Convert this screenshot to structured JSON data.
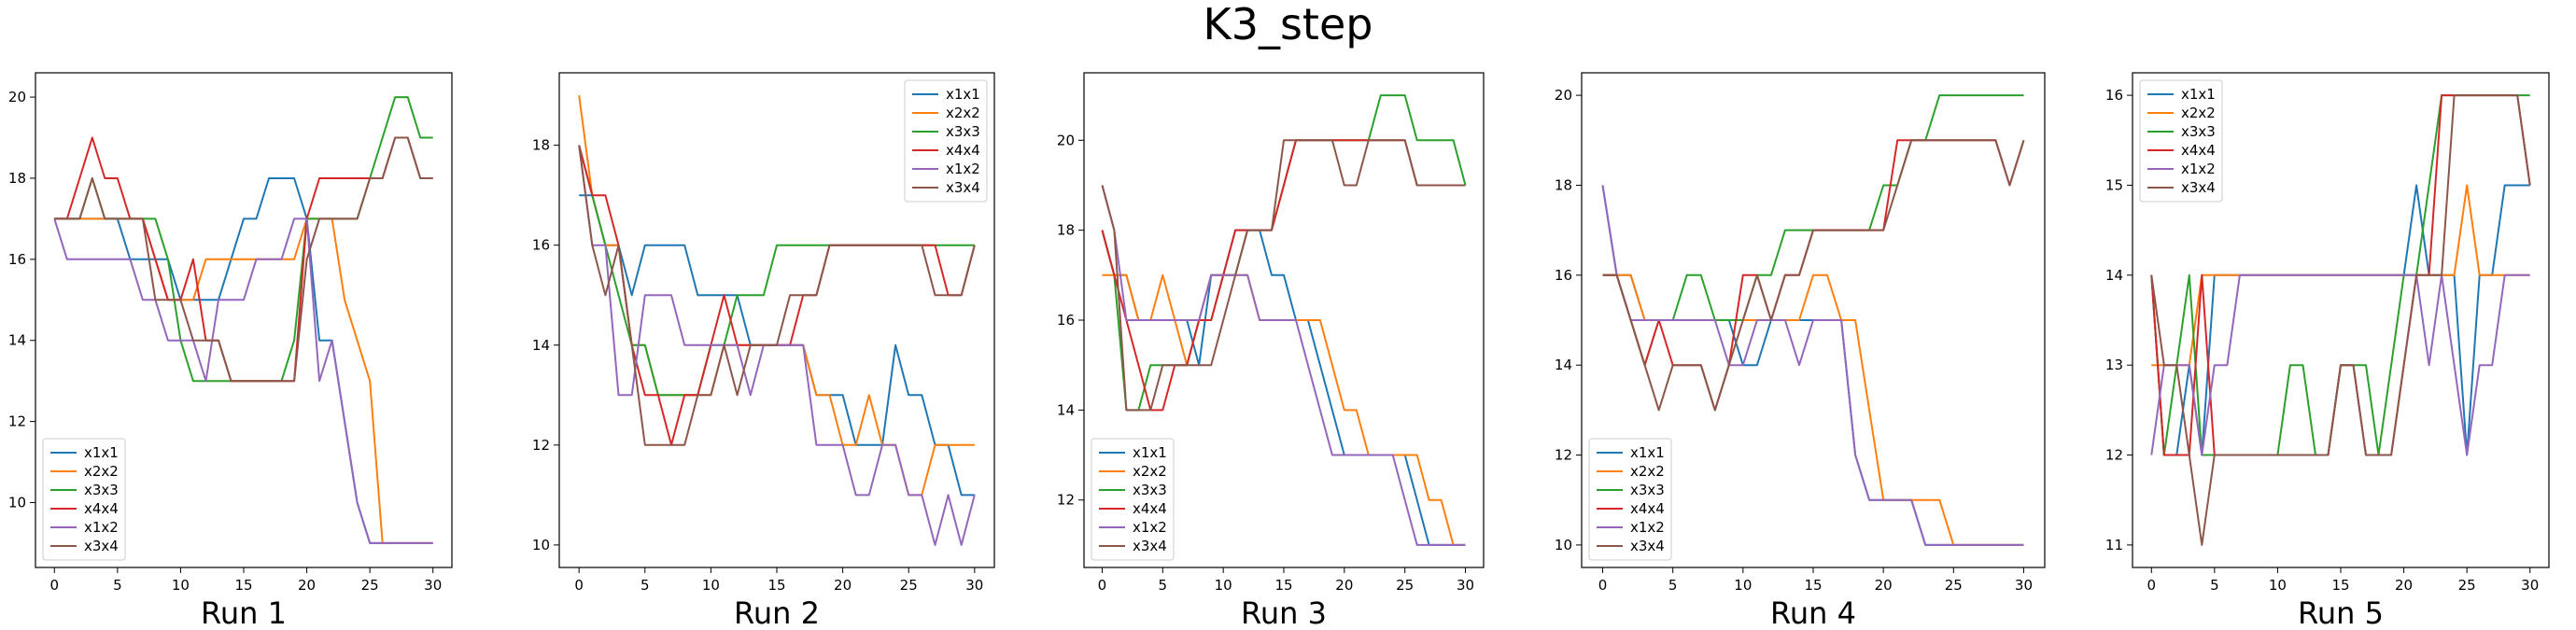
{
  "figure": {
    "title": "K3_step"
  },
  "series_names": [
    "x1x1",
    "x2x2",
    "x3x3",
    "x4x4",
    "x1x2",
    "x3x4"
  ],
  "colors": [
    "#1f77b4",
    "#ff7f0e",
    "#2ca02c",
    "#d62728",
    "#9467bd",
    "#8c564b"
  ],
  "chart_data": [
    {
      "type": "line",
      "title": "Run 1",
      "xlabel": "Run 1",
      "ylabel": "",
      "xlim": [
        -1.5,
        31.5
      ],
      "ylim": [
        8.4,
        20.6
      ],
      "xticks": [
        0,
        5,
        10,
        15,
        20,
        25,
        30
      ],
      "yticks": [
        10,
        12,
        14,
        16,
        18,
        20
      ],
      "legend_position": "lower-left",
      "series": [
        {
          "name": "x1x1",
          "values": [
            17,
            17,
            17,
            17,
            17,
            17,
            16,
            16,
            16,
            16,
            15,
            15,
            15,
            15,
            16,
            17,
            17,
            18,
            18,
            18,
            17,
            14,
            14,
            12,
            10,
            9,
            9,
            9,
            9,
            9,
            9
          ]
        },
        {
          "name": "x2x2",
          "values": [
            17,
            17,
            17,
            17,
            17,
            17,
            17,
            17,
            16,
            15,
            15,
            15,
            16,
            16,
            16,
            16,
            16,
            16,
            16,
            16,
            17,
            17,
            17,
            15,
            14,
            13,
            9,
            9,
            9,
            9,
            9
          ]
        },
        {
          "name": "x3x3",
          "values": [
            17,
            17,
            17,
            18,
            17,
            17,
            17,
            17,
            17,
            16,
            14,
            13,
            13,
            13,
            13,
            13,
            13,
            13,
            13,
            14,
            17,
            17,
            17,
            17,
            17,
            18,
            19,
            20,
            20,
            19,
            19
          ]
        },
        {
          "name": "x4x4",
          "values": [
            17,
            17,
            18,
            19,
            18,
            18,
            17,
            17,
            16,
            15,
            15,
            16,
            14,
            14,
            13,
            13,
            13,
            13,
            13,
            13,
            17,
            18,
            18,
            18,
            18,
            18,
            18,
            19,
            19,
            18,
            18
          ]
        },
        {
          "name": "x1x2",
          "values": [
            17,
            16,
            16,
            16,
            16,
            16,
            16,
            15,
            15,
            14,
            14,
            14,
            13,
            15,
            15,
            15,
            16,
            16,
            16,
            17,
            17,
            13,
            14,
            12,
            10,
            9,
            9,
            9,
            9,
            9,
            9
          ]
        },
        {
          "name": "x3x4",
          "values": [
            17,
            17,
            17,
            18,
            17,
            17,
            17,
            17,
            15,
            15,
            15,
            14,
            14,
            14,
            13,
            13,
            13,
            13,
            13,
            13,
            16,
            17,
            17,
            17,
            17,
            18,
            18,
            19,
            19,
            18,
            18
          ]
        }
      ]
    },
    {
      "type": "line",
      "title": "Run 2",
      "xlabel": "Run 2",
      "ylabel": "",
      "xlim": [
        -1.5,
        31.5
      ],
      "ylim": [
        9.55,
        19.45
      ],
      "xticks": [
        0,
        5,
        10,
        15,
        20,
        25,
        30
      ],
      "yticks": [
        10,
        12,
        14,
        16,
        18
      ],
      "legend_position": "top-right",
      "series": [
        {
          "name": "x1x1",
          "values": [
            17,
            17,
            16,
            16,
            15,
            16,
            16,
            16,
            16,
            15,
            15,
            15,
            15,
            14,
            14,
            14,
            14,
            14,
            13,
            13,
            13,
            12,
            12,
            12,
            14,
            13,
            13,
            12,
            12,
            11,
            11
          ]
        },
        {
          "name": "x2x2",
          "values": [
            19,
            17,
            16,
            16,
            14,
            14,
            13,
            13,
            13,
            13,
            13,
            14,
            14,
            14,
            14,
            14,
            14,
            14,
            13,
            13,
            12,
            12,
            13,
            12,
            12,
            11,
            11,
            12,
            12,
            12,
            12
          ]
        },
        {
          "name": "x3x3",
          "values": [
            18,
            17,
            16,
            15,
            14,
            14,
            13,
            13,
            13,
            13,
            14,
            14,
            15,
            15,
            15,
            16,
            16,
            16,
            16,
            16,
            16,
            16,
            16,
            16,
            16,
            16,
            16,
            16,
            16,
            16,
            16
          ]
        },
        {
          "name": "x4x4",
          "values": [
            18,
            17,
            17,
            16,
            14,
            13,
            13,
            12,
            13,
            13,
            14,
            15,
            14,
            14,
            14,
            14,
            14,
            15,
            15,
            16,
            16,
            16,
            16,
            16,
            16,
            16,
            16,
            16,
            15,
            15,
            16
          ]
        },
        {
          "name": "x1x2",
          "values": [
            18,
            16,
            16,
            13,
            13,
            15,
            15,
            15,
            14,
            14,
            14,
            14,
            14,
            13,
            14,
            14,
            14,
            14,
            12,
            12,
            12,
            11,
            11,
            12,
            12,
            11,
            11,
            10,
            11,
            10,
            11
          ]
        },
        {
          "name": "x3x4",
          "values": [
            18,
            16,
            15,
            16,
            14,
            12,
            12,
            12,
            12,
            13,
            13,
            14,
            13,
            14,
            14,
            14,
            15,
            15,
            15,
            16,
            16,
            16,
            16,
            16,
            16,
            16,
            16,
            15,
            15,
            15,
            16
          ]
        }
      ]
    },
    {
      "type": "line",
      "title": "Run 3",
      "xlabel": "Run 3",
      "ylabel": "",
      "xlim": [
        -1.5,
        31.5
      ],
      "ylim": [
        10.5,
        21.5
      ],
      "xticks": [
        0,
        5,
        10,
        15,
        20,
        25,
        30
      ],
      "yticks": [
        12,
        14,
        16,
        18,
        20
      ],
      "legend_position": "lower-left",
      "series": [
        {
          "name": "x1x1",
          "values": [
            18,
            17,
            17,
            16,
            16,
            16,
            16,
            16,
            15,
            17,
            17,
            18,
            18,
            18,
            17,
            17,
            16,
            16,
            15,
            14,
            13,
            13,
            13,
            13,
            13,
            13,
            12,
            11,
            11,
            11,
            11
          ]
        },
        {
          "name": "x2x2",
          "values": [
            17,
            17,
            17,
            16,
            16,
            17,
            16,
            15,
            16,
            17,
            17,
            17,
            17,
            16,
            16,
            16,
            16,
            16,
            16,
            15,
            14,
            14,
            13,
            13,
            13,
            13,
            13,
            12,
            12,
            11,
            11
          ]
        },
        {
          "name": "x3x3",
          "values": [
            18,
            17,
            14,
            14,
            15,
            15,
            15,
            15,
            16,
            16,
            17,
            17,
            18,
            18,
            18,
            19,
            20,
            20,
            20,
            20,
            20,
            20,
            20,
            21,
            21,
            21,
            20,
            20,
            20,
            20,
            19
          ]
        },
        {
          "name": "x4x4",
          "values": [
            18,
            17,
            16,
            15,
            14,
            14,
            15,
            15,
            16,
            16,
            17,
            18,
            18,
            18,
            18,
            19,
            20,
            20,
            20,
            20,
            20,
            20,
            20,
            20,
            20,
            20,
            19,
            19,
            19,
            19,
            19
          ]
        },
        {
          "name": "x1x2",
          "values": [
            19,
            18,
            16,
            16,
            16,
            16,
            16,
            16,
            16,
            17,
            17,
            17,
            17,
            16,
            16,
            16,
            16,
            15,
            14,
            13,
            13,
            13,
            13,
            13,
            13,
            12,
            11,
            11,
            11,
            11,
            11
          ]
        },
        {
          "name": "x3x4",
          "values": [
            19,
            18,
            14,
            14,
            14,
            15,
            15,
            15,
            15,
            15,
            16,
            17,
            18,
            18,
            18,
            20,
            20,
            20,
            20,
            20,
            19,
            19,
            20,
            20,
            20,
            20,
            19,
            19,
            19,
            19,
            19
          ]
        }
      ]
    },
    {
      "type": "line",
      "title": "Run 4",
      "xlabel": "Run 4",
      "ylabel": "",
      "xlim": [
        -1.5,
        31.5
      ],
      "ylim": [
        9.5,
        20.5
      ],
      "xticks": [
        0,
        5,
        10,
        15,
        20,
        25,
        30
      ],
      "yticks": [
        10,
        12,
        14,
        16,
        18,
        20
      ],
      "legend_position": "lower-left",
      "series": [
        {
          "name": "x1x1",
          "values": [
            18,
            16,
            16,
            15,
            15,
            15,
            15,
            15,
            15,
            15,
            14,
            14,
            15,
            15,
            15,
            15,
            15,
            15,
            12,
            11,
            11,
            11,
            11,
            10,
            10,
            10,
            10,
            10,
            10,
            10,
            10
          ]
        },
        {
          "name": "x2x2",
          "values": [
            16,
            16,
            16,
            15,
            15,
            15,
            15,
            15,
            15,
            15,
            15,
            15,
            15,
            15,
            15,
            16,
            16,
            15,
            15,
            13,
            11,
            11,
            11,
            11,
            11,
            10,
            10,
            10,
            10,
            10,
            10
          ]
        },
        {
          "name": "x3x3",
          "values": [
            16,
            16,
            15,
            14,
            15,
            15,
            16,
            16,
            15,
            15,
            15,
            16,
            16,
            17,
            17,
            17,
            17,
            17,
            17,
            17,
            18,
            18,
            19,
            19,
            20,
            20,
            20,
            20,
            20,
            20,
            20
          ]
        },
        {
          "name": "x4x4",
          "values": [
            16,
            16,
            15,
            14,
            15,
            14,
            14,
            14,
            13,
            14,
            16,
            16,
            15,
            16,
            16,
            17,
            17,
            17,
            17,
            17,
            17,
            19,
            19,
            19,
            19,
            19,
            19,
            19,
            19,
            18,
            19
          ]
        },
        {
          "name": "x1x2",
          "values": [
            18,
            16,
            15,
            15,
            15,
            15,
            15,
            15,
            15,
            14,
            14,
            15,
            15,
            15,
            14,
            15,
            15,
            15,
            12,
            11,
            11,
            11,
            11,
            10,
            10,
            10,
            10,
            10,
            10,
            10,
            10
          ]
        },
        {
          "name": "x3x4",
          "values": [
            16,
            16,
            15,
            14,
            13,
            14,
            14,
            14,
            13,
            14,
            15,
            16,
            15,
            16,
            16,
            17,
            17,
            17,
            17,
            17,
            17,
            18,
            19,
            19,
            19,
            19,
            19,
            19,
            19,
            18,
            19
          ]
        }
      ]
    },
    {
      "type": "line",
      "title": "Run 5",
      "xlabel": "Run 5",
      "ylabel": "",
      "xlim": [
        -1.5,
        31.5
      ],
      "ylim": [
        10.75,
        16.25
      ],
      "xticks": [
        0,
        5,
        10,
        15,
        20,
        25,
        30
      ],
      "yticks": [
        11,
        12,
        13,
        14,
        15,
        16
      ],
      "legend_position": "top-left",
      "series": [
        {
          "name": "x1x1",
          "values": [
            14,
            12,
            12,
            13,
            12,
            14,
            14,
            14,
            14,
            14,
            14,
            14,
            14,
            14,
            14,
            14,
            14,
            14,
            14,
            14,
            14,
            15,
            14,
            14,
            14,
            12,
            14,
            14,
            15,
            15,
            15
          ]
        },
        {
          "name": "x2x2",
          "values": [
            13,
            13,
            13,
            13,
            14,
            14,
            14,
            14,
            14,
            14,
            14,
            14,
            14,
            14,
            14,
            14,
            14,
            14,
            14,
            14,
            14,
            14,
            14,
            14,
            14,
            15,
            14,
            14,
            14,
            14,
            14
          ]
        },
        {
          "name": "x3x3",
          "values": [
            14,
            12,
            13,
            14,
            12,
            12,
            12,
            12,
            12,
            12,
            12,
            13,
            13,
            12,
            12,
            13,
            13,
            13,
            12,
            13,
            14,
            14,
            15,
            16,
            16,
            16,
            16,
            16,
            16,
            16,
            16
          ]
        },
        {
          "name": "x4x4",
          "values": [
            14,
            12,
            12,
            12,
            14,
            12,
            12,
            12,
            12,
            12,
            12,
            12,
            12,
            12,
            12,
            13,
            13,
            12,
            12,
            12,
            13,
            14,
            14,
            16,
            16,
            16,
            16,
            16,
            16,
            16,
            15
          ]
        },
        {
          "name": "x1x2",
          "values": [
            12,
            13,
            13,
            13,
            12,
            13,
            13,
            14,
            14,
            14,
            14,
            14,
            14,
            14,
            14,
            14,
            14,
            14,
            14,
            14,
            14,
            14,
            13,
            14,
            13,
            12,
            13,
            13,
            14,
            14,
            14
          ]
        },
        {
          "name": "x3x4",
          "values": [
            14,
            13,
            13,
            12,
            11,
            12,
            12,
            12,
            12,
            12,
            12,
            12,
            12,
            12,
            12,
            13,
            13,
            12,
            12,
            12,
            13,
            14,
            14,
            14,
            16,
            16,
            16,
            16,
            16,
            16,
            15
          ]
        }
      ]
    }
  ]
}
